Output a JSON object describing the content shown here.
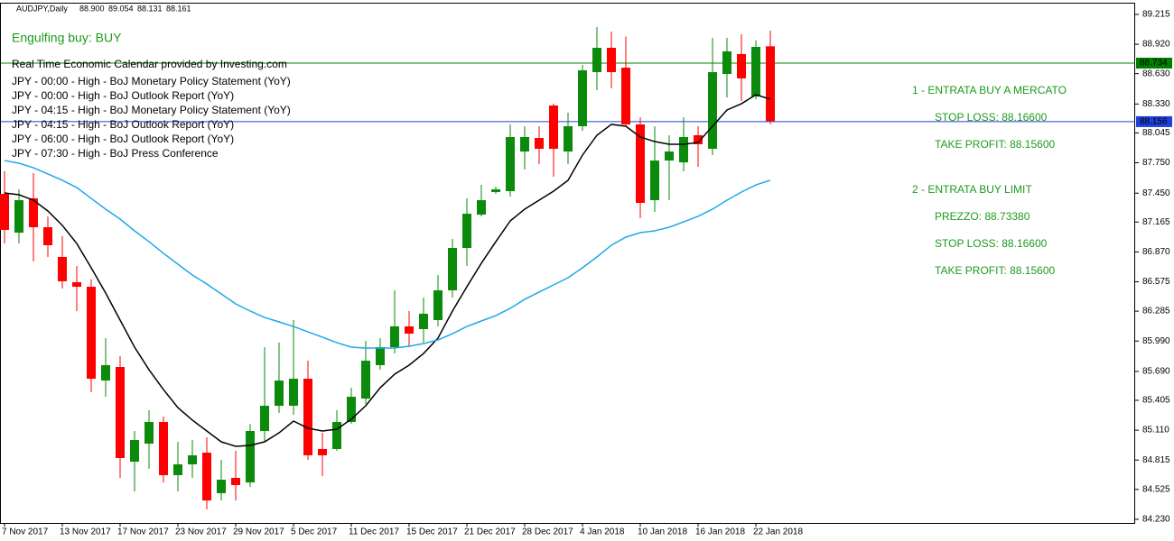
{
  "chart_data": {
    "type": "candlestick",
    "header": "AUDJPY,Daily",
    "header_labels": [
      "88.900",
      "89.054",
      "88.131",
      "88.161"
    ],
    "signal": "Engulfing buy: BUY",
    "calendar_title": "Real Time Economic Calendar provided by Investing.com",
    "calendar": [
      "JPY - 00:00 - High - BoJ Monetary Policy Statement (YoY)",
      "JPY - 00:00 - High - BoJ Outlook Report (YoY)",
      "JPY - 04:15 - High - BoJ Monetary Policy Statement (YoY)",
      "JPY - 04:15 - High - BoJ Outlook Report (YoY)",
      "JPY - 06:00 - High - BoJ Outlook Report (YoY)",
      "JPY - 07:30 - High - BoJ Press Conference"
    ],
    "notes": [
      "1 - ENTRATA BUY A MERCATO",
      "STOP LOSS: 88.16600",
      "TAKE PROFIT: 88.15600",
      "2 - ENTRATA BUY LIMIT",
      "PREZZO: 88.73380",
      "STOP LOSS: 88.16600",
      "TAKE PROFIT: 88.15600"
    ],
    "categories": [
      "7 Nov 2017",
      null,
      null,
      null,
      "13 Nov 2017",
      null,
      null,
      null,
      "17 Nov 2017",
      null,
      null,
      null,
      "23 Nov 2017",
      null,
      null,
      null,
      "29 Nov 2017",
      null,
      null,
      null,
      "5 Dec 2017",
      null,
      null,
      null,
      "11 Dec 2017",
      null,
      null,
      null,
      "15 Dec 2017",
      null,
      null,
      null,
      "21 Dec 2017",
      null,
      null,
      null,
      "28 Dec 2017",
      null,
      null,
      null,
      "4 Jan 2018",
      null,
      null,
      null,
      "10 Jan 2018",
      null,
      null,
      null,
      "16 Jan 2018",
      null,
      null,
      null,
      "22 Jan 2018",
      null
    ],
    "open": [
      87.443,
      87.06,
      87.399,
      87.114,
      86.82,
      86.571,
      86.526,
      85.6,
      85.734,
      84.799,
      84.977,
      85.191,
      84.666,
      84.773,
      84.888,
      84.488,
      84.639,
      84.594,
      85.102,
      85.351,
      85.351,
      85.618,
      84.924,
      84.924,
      85.191,
      85.422,
      85.752,
      85.93,
      86.135,
      86.108,
      86.197,
      86.491,
      86.909,
      87.238,
      87.461,
      87.47,
      87.861,
      87.995,
      88.315,
      87.861,
      88.111,
      88.645,
      88.885,
      88.689,
      88.129,
      87.381,
      87.772,
      87.754,
      88.022,
      87.888,
      88.627,
      88.823,
      88.404,
      88.9
    ],
    "high": [
      87.666,
      87.488,
      87.648,
      87.221,
      87.025,
      86.731,
      86.597,
      86.019,
      85.841,
      85.102,
      85.307,
      85.244,
      84.995,
      85.013,
      85.04,
      84.817,
      84.906,
      85.173,
      85.93,
      85.974,
      86.197,
      85.796,
      85.084,
      85.307,
      85.529,
      85.992,
      86.019,
      86.491,
      86.286,
      86.419,
      86.642,
      86.998,
      87.399,
      87.532,
      87.514,
      88.129,
      88.111,
      88.111,
      88.333,
      88.244,
      88.716,
      89.09,
      89.045,
      88.996,
      88.2,
      88.111,
      88.022,
      88.2,
      88.111,
      88.983,
      88.983,
      89.019,
      88.957,
      89.054
    ],
    "low": [
      86.954,
      86.954,
      86.775,
      86.82,
      86.508,
      86.286,
      85.485,
      85.44,
      84.639,
      84.505,
      84.728,
      84.594,
      84.505,
      84.639,
      84.327,
      84.416,
      84.416,
      84.55,
      84.995,
      85.28,
      85.262,
      84.817,
      84.657,
      84.906,
      85.173,
      85.369,
      85.707,
      85.867,
      85.93,
      85.974,
      86.135,
      86.419,
      86.731,
      87.221,
      87.443,
      87.416,
      87.684,
      87.737,
      87.612,
      87.737,
      88.066,
      88.467,
      88.485,
      88.111,
      87.203,
      87.265,
      87.381,
      87.666,
      87.71,
      87.826,
      88.396,
      88.36,
      88.378,
      88.131
    ],
    "close": [
      87.087,
      87.381,
      87.114,
      86.936,
      86.58,
      86.526,
      85.618,
      85.752,
      84.835,
      85.013,
      85.191,
      84.666,
      84.773,
      84.862,
      84.416,
      84.621,
      84.568,
      85.102,
      85.351,
      85.6,
      85.618,
      84.862,
      84.862,
      85.191,
      85.44,
      85.796,
      85.93,
      86.135,
      86.063,
      86.26,
      86.491,
      86.909,
      87.247,
      87.381,
      87.488,
      88.004,
      88.004,
      87.888,
      87.888,
      88.111,
      88.663,
      88.885,
      88.645,
      88.129,
      87.354,
      87.772,
      87.861,
      88.004,
      87.933,
      88.645,
      88.85,
      88.583,
      88.894,
      88.161
    ],
    "up_color": "#0b8a0b",
    "down_color": "#ff0000",
    "lines": [
      {
        "color": "#000000",
        "values": [
          87.452,
          87.434,
          87.381,
          87.274,
          87.132,
          86.953,
          86.713,
          86.464,
          86.197,
          85.93,
          85.707,
          85.511,
          85.333,
          85.209,
          85.102,
          84.995,
          84.951,
          84.96,
          84.995,
          85.084,
          85.2,
          85.129,
          85.102,
          85.12,
          85.218,
          85.351,
          85.529,
          85.663,
          85.752,
          85.867,
          86.019,
          86.286,
          86.526,
          86.758,
          86.971,
          87.176,
          87.292,
          87.381,
          87.47,
          87.577,
          87.826,
          88.022,
          88.129,
          88.111,
          88.004,
          87.959,
          87.933,
          87.933,
          87.951,
          88.111,
          88.271,
          88.333,
          88.422,
          88.378
        ]
      },
      {
        "color": "#1ea8e8",
        "values": [
          87.772,
          87.746,
          87.701,
          87.639,
          87.577,
          87.505,
          87.398,
          87.292,
          87.194,
          87.078,
          86.971,
          86.856,
          86.749,
          86.642,
          86.553,
          86.455,
          86.357,
          86.286,
          86.223,
          86.179,
          86.134,
          86.081,
          86.028,
          85.974,
          85.93,
          85.921,
          85.921,
          85.921,
          85.939,
          85.965,
          86.001,
          86.063,
          86.134,
          86.188,
          86.241,
          86.313,
          86.402,
          86.473,
          86.544,
          86.615,
          86.713,
          86.82,
          86.936,
          87.016,
          87.06,
          87.078,
          87.114,
          87.167,
          87.221,
          87.292,
          87.381,
          87.461,
          87.532,
          87.577
        ]
      }
    ],
    "hlines": [
      {
        "value": 88.734,
        "color": "#008000"
      },
      {
        "value": 88.156,
        "color": "#1e3fd8"
      }
    ],
    "ylim": [
      84.194,
      89.357
    ],
    "yticks": [
      89.215,
      {
        "value": 88.92,
        "label": "88.920"
      },
      {
        "value": 88.63,
        "label": "88.630"
      },
      {
        "value": 88.33,
        "label": "88.330"
      },
      88.045,
      {
        "value": 87.75,
        "label": "87.750"
      },
      {
        "value": 87.45,
        "label": "87.450"
      },
      87.165,
      {
        "value": 86.87,
        "label": "86.870"
      },
      86.575,
      86.285,
      {
        "value": 85.99,
        "label": "85.990"
      },
      {
        "value": 85.69,
        "label": "85.690"
      },
      85.405,
      {
        "value": 85.11,
        "label": "85.110"
      },
      84.815,
      84.525,
      {
        "value": 84.23,
        "label": "84.230"
      }
    ],
    "text_color": "#1e9a1e"
  }
}
